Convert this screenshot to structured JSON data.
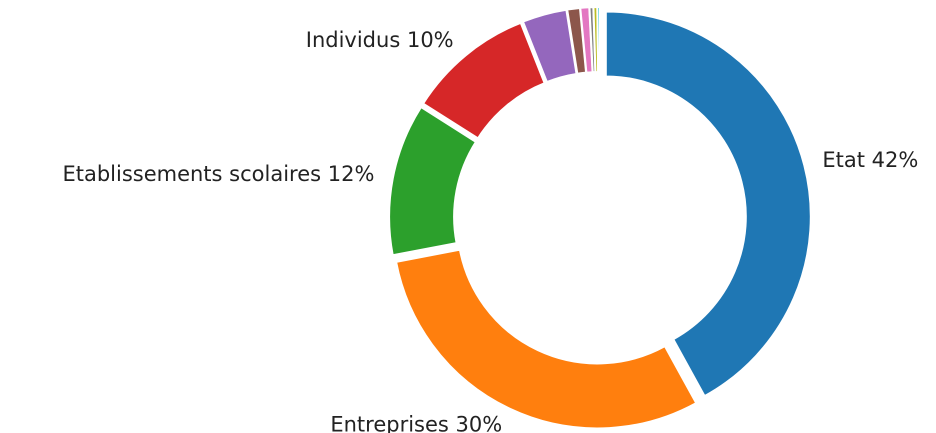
{
  "chart_data": {
    "type": "donut",
    "categories": [
      "Etat",
      "Entreprises",
      "Etablissements scolaires",
      "Individus",
      null,
      null,
      null,
      null,
      null,
      null
    ],
    "values": [
      42,
      30,
      12,
      10,
      3.5,
      1,
      0.7,
      0.3,
      0.3,
      0.2
    ],
    "value_labels": [
      "42%",
      "30%",
      "12%",
      "10%",
      null,
      null,
      null,
      null,
      null,
      null
    ],
    "colors": [
      "#1f77b4",
      "#ff7f0e",
      "#2ca02c",
      "#d62728",
      "#9467bd",
      "#8c564b",
      "#e377c2",
      "#7f7f7f",
      "#bcbd22",
      "#17becf"
    ]
  }
}
